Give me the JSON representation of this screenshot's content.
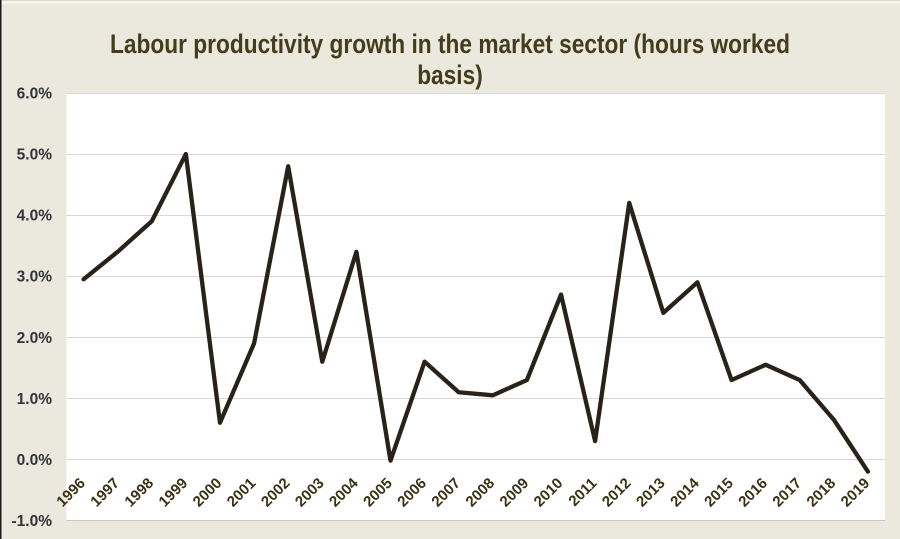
{
  "chart": {
    "title_line1": "Labour productivity growth in the market sector (hours worked",
    "title_line2": "basis)"
  },
  "chart_data": {
    "type": "line",
    "title": "Labour productivity growth in the market sector (hours worked basis)",
    "xlabel": "",
    "ylabel": "",
    "categories": [
      "1996",
      "1997",
      "1998",
      "1999",
      "2000",
      "2001",
      "2002",
      "2003",
      "2004",
      "2005",
      "2006",
      "2007",
      "2008",
      "2009",
      "2010",
      "2011",
      "2012",
      "2013",
      "2014",
      "2015",
      "2016",
      "2017",
      "2018",
      "2019"
    ],
    "values": [
      2.95,
      3.4,
      3.9,
      5.0,
      0.6,
      1.9,
      4.8,
      1.6,
      3.4,
      -0.02,
      1.6,
      1.1,
      1.05,
      1.3,
      2.7,
      0.3,
      4.2,
      2.4,
      2.9,
      1.3,
      1.55,
      1.3,
      0.65,
      -0.2
    ],
    "ylim": [
      -1.0,
      6.0
    ],
    "ytick_step": 1.0,
    "ytick_labels": [
      "-1.0%",
      "0.0%",
      "1.0%",
      "2.0%",
      "3.0%",
      "4.0%",
      "5.0%",
      "6.0%"
    ],
    "grid": true,
    "legend": "none",
    "colors": {
      "page_background": "#ebe8dd",
      "plot_background": "#ffffff",
      "gridline": "#d9d9d9",
      "plot_bottom_border": "#c9c7c0",
      "series_line": "#292219",
      "title_text": "#453c1d",
      "x_tick_text": "#3b3214",
      "y_tick_text": "#31333b",
      "left_edge_line": "#1a1a1a",
      "top_edge_line": "#d9d5c7",
      "top_edge_highlight": "#f8f6ee"
    }
  }
}
